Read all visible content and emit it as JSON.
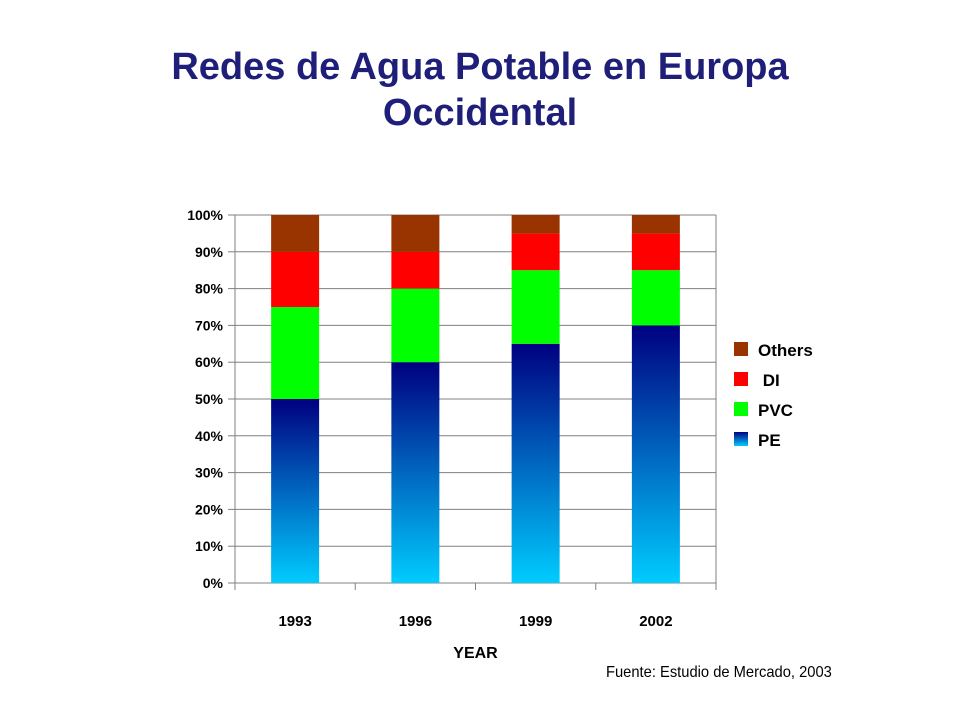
{
  "title_lines": [
    "Redes de Agua Potable en Europa",
    "Occidental"
  ],
  "source": "Fuente: Estudio de Mercado, 2003",
  "colors": {
    "Others": "#993300",
    "DI": "#ff0000",
    "PVC": "#00ff00",
    "PE_top": "#000080",
    "PE_bottom": "#00ccff",
    "title": "#1f1f7a"
  },
  "chart_data": {
    "type": "bar",
    "stacked": true,
    "categories": [
      "1993",
      "1996",
      "1999",
      "2002"
    ],
    "series": [
      {
        "name": "PE",
        "values": [
          50,
          60,
          65,
          70
        ]
      },
      {
        "name": "PVC",
        "values": [
          25,
          20,
          20,
          15
        ]
      },
      {
        "name": "DI",
        "values": [
          15,
          10,
          10,
          10
        ]
      },
      {
        "name": "Others",
        "values": [
          10,
          10,
          5,
          5
        ]
      }
    ],
    "legend_order": [
      "Others",
      " DI",
      "PVC",
      "PE"
    ],
    "y_ticks": [
      "0%",
      "10%",
      "20%",
      "30%",
      "40%",
      "50%",
      "60%",
      "70%",
      "80%",
      "90%",
      "100%"
    ],
    "xlabel": "YEAR",
    "ylabel": "",
    "ylim": [
      0,
      100
    ],
    "grid": true,
    "legend_position": "right"
  }
}
